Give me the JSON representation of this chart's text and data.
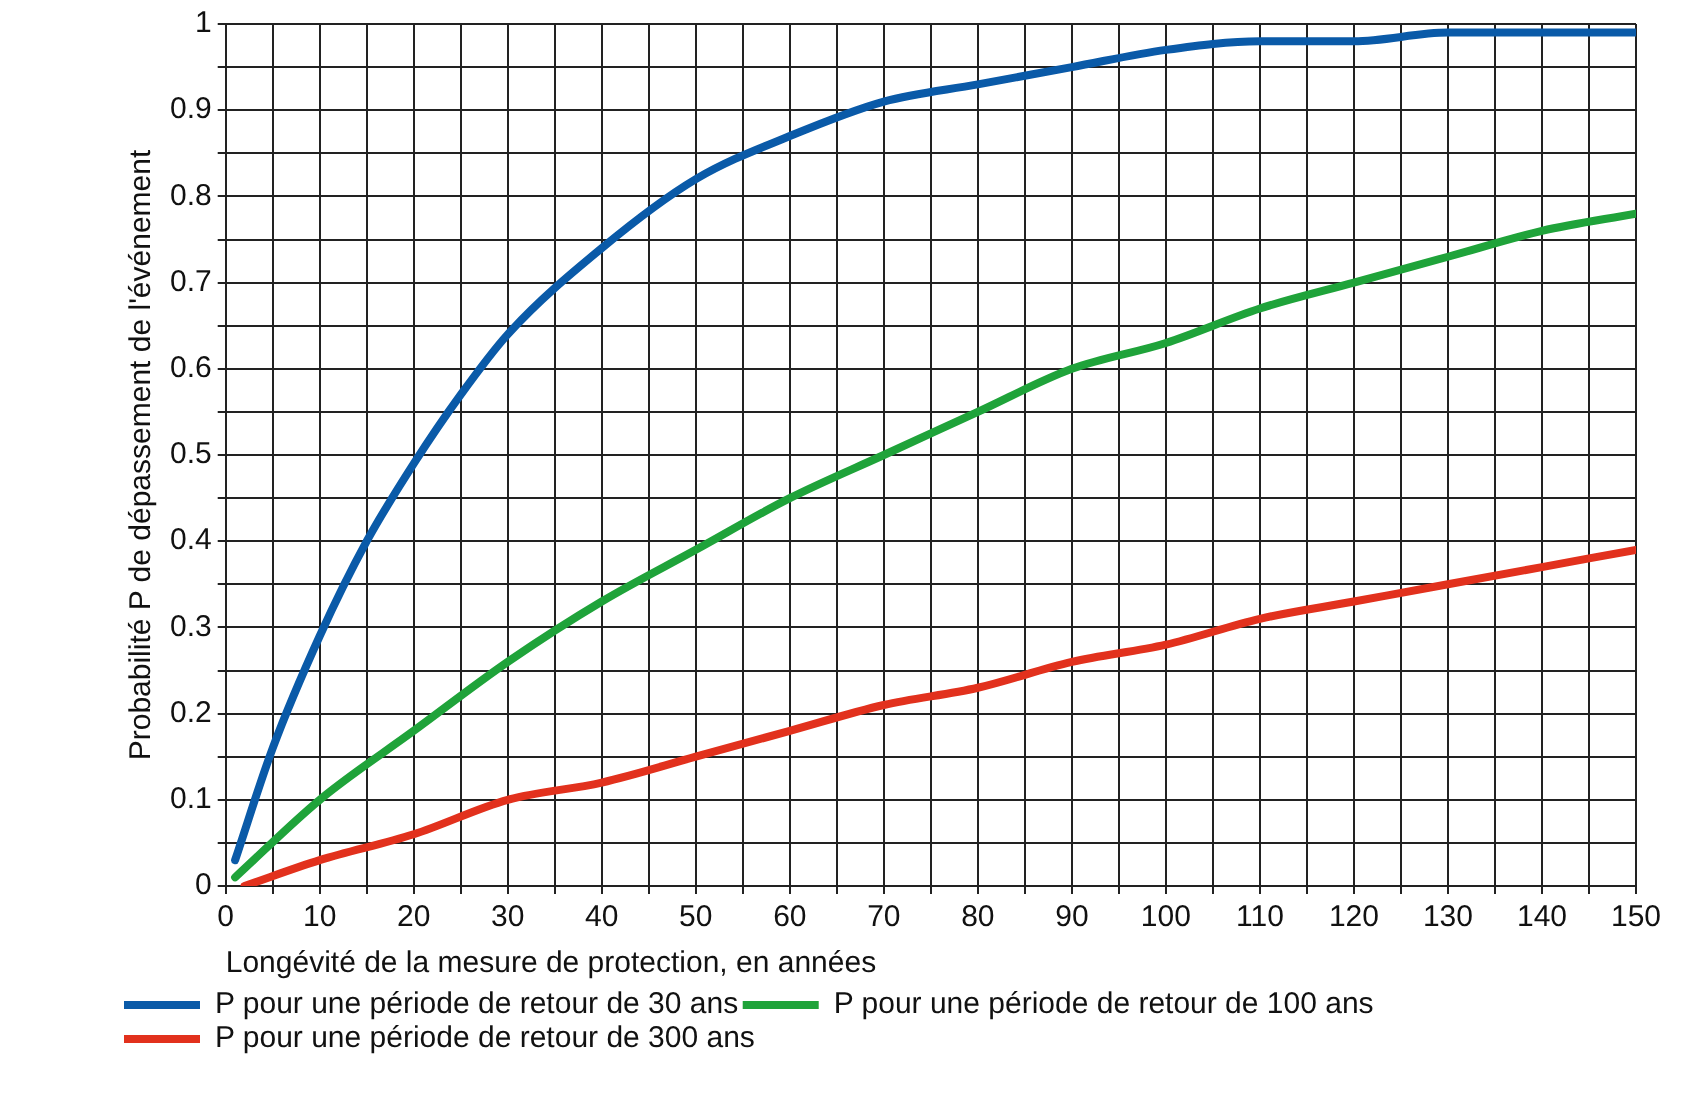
{
  "chart_data": {
    "type": "line",
    "xlabel": "Longévité de la mesure de protection, en années",
    "ylabel": "Probabilité P de dépassement de l'événement",
    "xlim": [
      0,
      150
    ],
    "ylim": [
      0,
      1
    ],
    "xticks": [
      0,
      {
        "value": 5,
        "label": null
      },
      10,
      {
        "value": 15,
        "label": null
      },
      20,
      {
        "value": 25,
        "label": null
      },
      30,
      {
        "value": 35,
        "label": null
      },
      40,
      {
        "value": 45,
        "label": null
      },
      50,
      {
        "value": 55,
        "label": null
      },
      60,
      {
        "value": 65,
        "label": null
      },
      70,
      {
        "value": 75,
        "label": null
      },
      80,
      {
        "value": 85,
        "label": null
      },
      90,
      {
        "value": 95,
        "label": null
      },
      100,
      {
        "value": 105,
        "label": null
      },
      110,
      {
        "value": 115,
        "label": null
      },
      120,
      {
        "value": 125,
        "label": null
      },
      130,
      {
        "value": 135,
        "label": null
      },
      140,
      {
        "value": 145,
        "label": null
      },
      150
    ],
    "yticks": [
      0,
      {
        "value": 0.05,
        "label": null
      },
      0.1,
      {
        "value": 0.15,
        "label": null
      },
      0.2,
      {
        "value": 0.25,
        "label": null
      },
      0.3,
      {
        "value": 0.35,
        "label": null
      },
      0.4,
      {
        "value": 0.45,
        "label": null
      },
      0.5,
      {
        "value": 0.55,
        "label": null
      },
      0.6,
      {
        "value": 0.65,
        "label": null
      },
      0.7,
      {
        "value": 0.75,
        "label": null
      },
      0.8,
      {
        "value": 0.85,
        "label": null
      },
      0.9,
      {
        "value": 0.95,
        "label": null
      },
      1
    ],
    "grid": true,
    "legend": "bottom",
    "marker": "none",
    "line_style": "solid",
    "series": [
      {
        "name": "P pour une période de retour de 30 ans",
        "color": "#0a5aa8",
        "x": [
          1,
          5,
          10,
          15,
          20,
          25,
          30,
          40,
          50,
          60,
          70,
          80,
          90,
          100,
          110,
          120,
          130,
          140,
          150
        ],
        "values": [
          0.03,
          0.16,
          0.29,
          0.4,
          0.49,
          0.57,
          0.64,
          0.74,
          0.82,
          0.87,
          0.91,
          0.93,
          0.95,
          0.97,
          0.98,
          0.98,
          0.99,
          0.99,
          0.99
        ]
      },
      {
        "name": "P pour une période de retour de 100 ans",
        "color": "#1fa33a",
        "x": [
          1,
          10,
          20,
          30,
          40,
          50,
          60,
          70,
          80,
          90,
          100,
          110,
          120,
          130,
          140,
          150
        ],
        "values": [
          0.01,
          0.1,
          0.18,
          0.26,
          0.33,
          0.39,
          0.45,
          0.5,
          0.55,
          0.6,
          0.63,
          0.67,
          0.7,
          0.73,
          0.76,
          0.78
        ]
      },
      {
        "name": "P pour une période de retour de 300 ans",
        "color": "#e2311d",
        "x": [
          2,
          10,
          20,
          30,
          40,
          50,
          60,
          70,
          80,
          90,
          100,
          110,
          120,
          130,
          140,
          150
        ],
        "values": [
          0,
          0.03,
          0.06,
          0.1,
          0.12,
          0.15,
          0.18,
          0.21,
          0.23,
          0.26,
          0.28,
          0.31,
          0.33,
          0.35,
          0.37,
          0.39
        ]
      }
    ]
  }
}
